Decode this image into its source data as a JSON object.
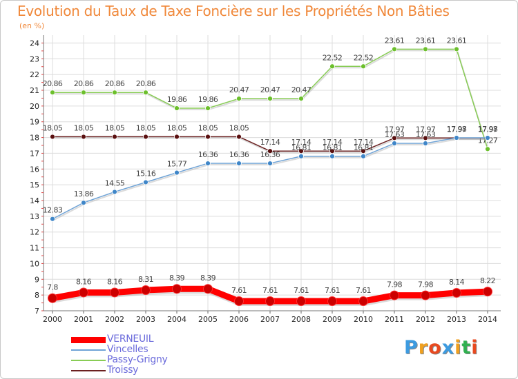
{
  "chart_data": {
    "type": "line",
    "title": "Evolution du Taux de Taxe Foncière sur les Propriétés Non Bâties",
    "unit_label": "(en %)",
    "x": [
      "2000",
      "2001",
      "2002",
      "2003",
      "2004",
      "2005",
      "2006",
      "2007",
      "2008",
      "2009",
      "2010",
      "2011",
      "2012",
      "2013",
      "2014"
    ],
    "ylim": [
      7,
      24.5
    ],
    "yticks": [
      "7",
      "8",
      "9",
      "10",
      "11",
      "12",
      "13",
      "14",
      "15",
      "16",
      "17",
      "18",
      "19",
      "20",
      "21",
      "22",
      "23",
      "24"
    ],
    "grid": true,
    "legend_position": "bottom-left",
    "series": [
      {
        "name": "VERNEUIL",
        "color": "#ff0000",
        "marker": "#cc0000",
        "labels": [
          "7.8",
          "8.16",
          "8.16",
          "8.31",
          "8.39",
          "8.39",
          "7.61",
          "7.61",
          "7.61",
          "7.61",
          "7.61",
          "7.98",
          "7.98",
          "8.14",
          "8.22"
        ],
        "values": [
          7.8,
          8.16,
          8.16,
          8.31,
          8.39,
          8.39,
          7.61,
          7.61,
          7.61,
          7.61,
          7.61,
          7.98,
          7.98,
          8.14,
          8.22
        ]
      },
      {
        "name": "Vincelles",
        "color": "#6fa3d6",
        "marker": "#3f86c8",
        "labels": [
          "12.83",
          "13.86",
          "14.55",
          "15.16",
          "15.77",
          "16.36",
          "16.36",
          "16.36",
          "16.81",
          "16.81",
          "16.81",
          "17.63",
          "17.63",
          "17.98",
          "17.98"
        ],
        "values": [
          12.83,
          13.86,
          14.55,
          15.16,
          15.77,
          16.36,
          16.36,
          16.36,
          16.81,
          16.81,
          16.81,
          17.63,
          17.63,
          17.98,
          17.98
        ]
      },
      {
        "name": "Passy-Grigny",
        "color": "#88cc55",
        "marker": "#6cbf2c",
        "labels": [
          "20.86",
          "20.86",
          "20.86",
          "20.86",
          "19.86",
          "19.86",
          "20.47",
          "20.47",
          "20.47",
          "22.52",
          "22.52",
          "23.61",
          "23.61",
          "23.61",
          "17.27"
        ],
        "values": [
          20.86,
          20.86,
          20.86,
          20.86,
          19.86,
          19.86,
          20.47,
          20.47,
          20.47,
          22.52,
          22.52,
          23.61,
          23.61,
          23.61,
          17.27
        ]
      },
      {
        "name": "Troissy",
        "color": "#6b2020",
        "marker": "#5a1010",
        "labels": [
          "18.05",
          "18.05",
          "18.05",
          "18.05",
          "18.05",
          "18.05",
          "18.05",
          "17.14",
          "17.14",
          "17.14",
          "17.14",
          "17.97",
          "17.97",
          "17.97",
          "17.97"
        ],
        "values": [
          18.05,
          18.05,
          18.05,
          18.05,
          18.05,
          18.05,
          18.05,
          17.14,
          17.14,
          17.14,
          17.14,
          17.97,
          17.97,
          17.97,
          17.97
        ]
      }
    ]
  },
  "logo": {
    "letters": [
      "P",
      "r",
      "o",
      "x",
      "i",
      "t",
      "i"
    ],
    "colors": [
      "#3d9be0",
      "#f0a020",
      "#e84a20",
      "#3d9be0",
      "#f0a020",
      "#30b050",
      "#e84a20"
    ]
  }
}
